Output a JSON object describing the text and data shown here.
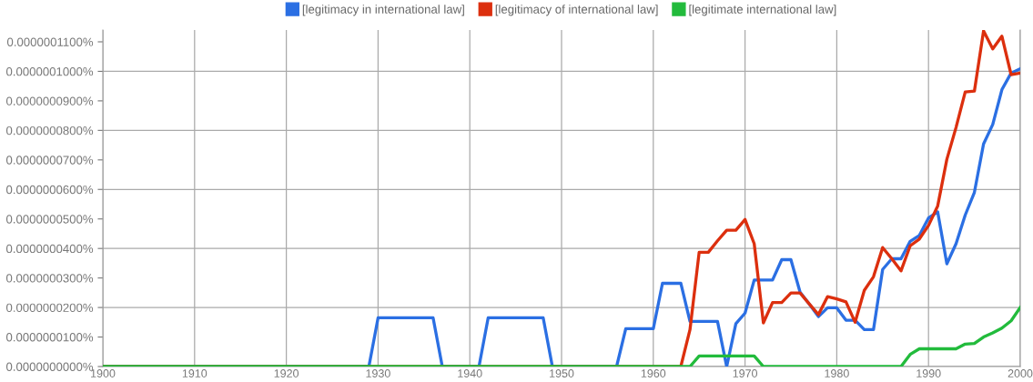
{
  "chart_data": {
    "type": "line",
    "legend": "top",
    "grid": true,
    "marker": "none",
    "line_style": "solid",
    "xlim": [
      1900,
      2000
    ],
    "xticks": [
      1900,
      1910,
      1920,
      1930,
      1940,
      1950,
      1960,
      1970,
      1980,
      1990,
      2000
    ],
    "ylim": [
      0,
      1.14e-07
    ],
    "yticks": [
      {
        "value": 0,
        "label": "0.0000000000%"
      },
      {
        "value": 1e-08,
        "label": "0.0000000100%"
      },
      {
        "value": 2e-08,
        "label": "0.0000000200%"
      },
      {
        "value": 3e-08,
        "label": "0.0000000300%"
      },
      {
        "value": 4e-08,
        "label": "0.0000000400%"
      },
      {
        "value": 5e-08,
        "label": "0.0000000500%"
      },
      {
        "value": 6e-08,
        "label": "0.0000000600%"
      },
      {
        "value": 7e-08,
        "label": "0.0000000700%"
      },
      {
        "value": 8e-08,
        "label": "0.0000000800%"
      },
      {
        "value": 9e-08,
        "label": "0.0000000900%"
      },
      {
        "value": 1e-07,
        "label": "0.0000001000%"
      },
      {
        "value": 1.1e-07,
        "label": "0.0000001100%"
      }
    ],
    "series": [
      {
        "name": "[legitimacy in international law]",
        "color": "#2b6fe3",
        "x": [
          1900,
          1929,
          1930,
          1936,
          1937,
          1941,
          1942,
          1948,
          1949,
          1956,
          1957,
          1960,
          1961,
          1963,
          1964,
          1967,
          1968,
          1969,
          1970,
          1971,
          1973,
          1974,
          1975,
          1976,
          1977,
          1978,
          1979,
          1980,
          1981,
          1982,
          1983,
          1984,
          1985,
          1986,
          1987,
          1988,
          1989,
          1990,
          1991,
          1992,
          1993,
          1994,
          1995,
          1996,
          1997,
          1998,
          1999,
          2000
        ],
        "values": [
          0,
          0,
          1.65e-08,
          1.65e-08,
          0,
          0,
          1.65e-08,
          1.65e-08,
          0,
          0,
          1.28e-08,
          1.28e-08,
          2.82e-08,
          2.82e-08,
          1.53e-08,
          1.53e-08,
          0,
          1.45e-08,
          1.81e-08,
          2.93e-08,
          2.93e-08,
          3.62e-08,
          3.62e-08,
          2.52e-08,
          2.12e-08,
          1.69e-08,
          1.99e-08,
          1.99e-08,
          1.57e-08,
          1.57e-08,
          1.25e-08,
          1.25e-08,
          3.29e-08,
          3.65e-08,
          3.65e-08,
          4.24e-08,
          4.44e-08,
          5.03e-08,
          5.24e-08,
          3.48e-08,
          4.16e-08,
          5.13e-08,
          5.9e-08,
          7.54e-08,
          8.2e-08,
          9.38e-08,
          9.94e-08,
          1.009e-07
        ]
      },
      {
        "name": "[legitimacy of international law]",
        "color": "#dc2f0e",
        "x": [
          1900,
          1963,
          1964,
          1965,
          1966,
          1967,
          1968,
          1969,
          1970,
          1971,
          1972,
          1973,
          1974,
          1975,
          1976,
          1977,
          1978,
          1979,
          1980,
          1981,
          1982,
          1983,
          1984,
          1985,
          1986,
          1987,
          1988,
          1989,
          1990,
          1991,
          1992,
          1993,
          1994,
          1995,
          1996,
          1997,
          1998,
          1999,
          2000
        ],
        "values": [
          0,
          0,
          1.25e-08,
          3.87e-08,
          3.87e-08,
          4.26e-08,
          4.62e-08,
          4.62e-08,
          4.98e-08,
          4.16e-08,
          1.48e-08,
          2.17e-08,
          2.17e-08,
          2.49e-08,
          2.49e-08,
          2.12e-08,
          1.76e-08,
          2.37e-08,
          2.29e-08,
          2.19e-08,
          1.5e-08,
          2.58e-08,
          3.04e-08,
          4.03e-08,
          3.65e-08,
          3.24e-08,
          4.09e-08,
          4.32e-08,
          4.78e-08,
          5.44e-08,
          7.02e-08,
          8.1e-08,
          9.3e-08,
          9.33e-08,
          1.137e-07,
          1.076e-07,
          1.119e-07,
          9.89e-08,
          9.94e-08
        ]
      },
      {
        "name": "[legitimate international law]",
        "color": "#22bb3c",
        "x": [
          1900,
          1964,
          1965,
          1971,
          1972,
          1987,
          1988,
          1989,
          1993,
          1994,
          1995,
          1996,
          1997,
          1998,
          1999,
          2000
        ],
        "values": [
          0,
          0,
          3.6e-09,
          3.6e-09,
          0,
          0,
          4.1e-09,
          6e-09,
          6e-09,
          7.6e-09,
          7.8e-09,
          1e-08,
          1.14e-08,
          1.3e-08,
          1.55e-08,
          2e-08
        ]
      }
    ]
  }
}
